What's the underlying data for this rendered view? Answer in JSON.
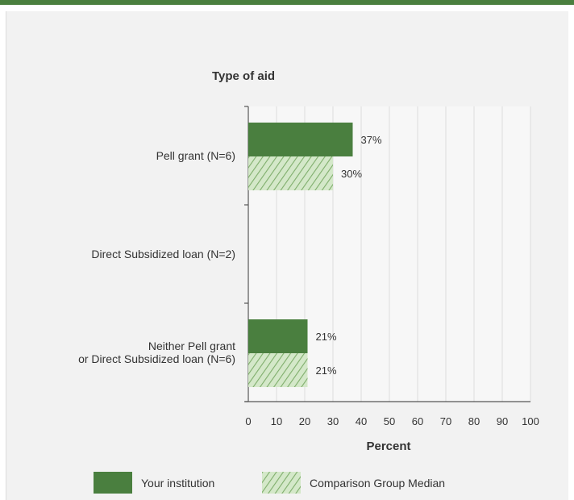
{
  "chart_data": {
    "type": "bar",
    "orientation": "horizontal",
    "title": "Type of aid",
    "xlabel": "Percent",
    "xlim": [
      0,
      100
    ],
    "xticks": [
      0,
      10,
      20,
      30,
      40,
      50,
      60,
      70,
      80,
      90,
      100
    ],
    "categories": [
      [
        "Pell grant  (N=6)"
      ],
      [
        "Direct Subsidized loan (N=2)"
      ],
      [
        "Neither Pell grant",
        "or Direct Subsidized loan (N=6)"
      ]
    ],
    "series": [
      {
        "name": "Your institution",
        "values": [
          37,
          null,
          21
        ],
        "labels": [
          "37%",
          "",
          "21%"
        ],
        "color": "#4a7f3f",
        "pattern": "solid"
      },
      {
        "name": "Comparison Group Median",
        "values": [
          30,
          null,
          21
        ],
        "labels": [
          "30%",
          "",
          "21%"
        ],
        "color": "#b5d6a7",
        "pattern": "diagonal-hatch"
      }
    ],
    "grid": true,
    "legend": "bottom"
  },
  "colors": {
    "accent": "#4a7f3f",
    "light": "#b5d6a7"
  }
}
